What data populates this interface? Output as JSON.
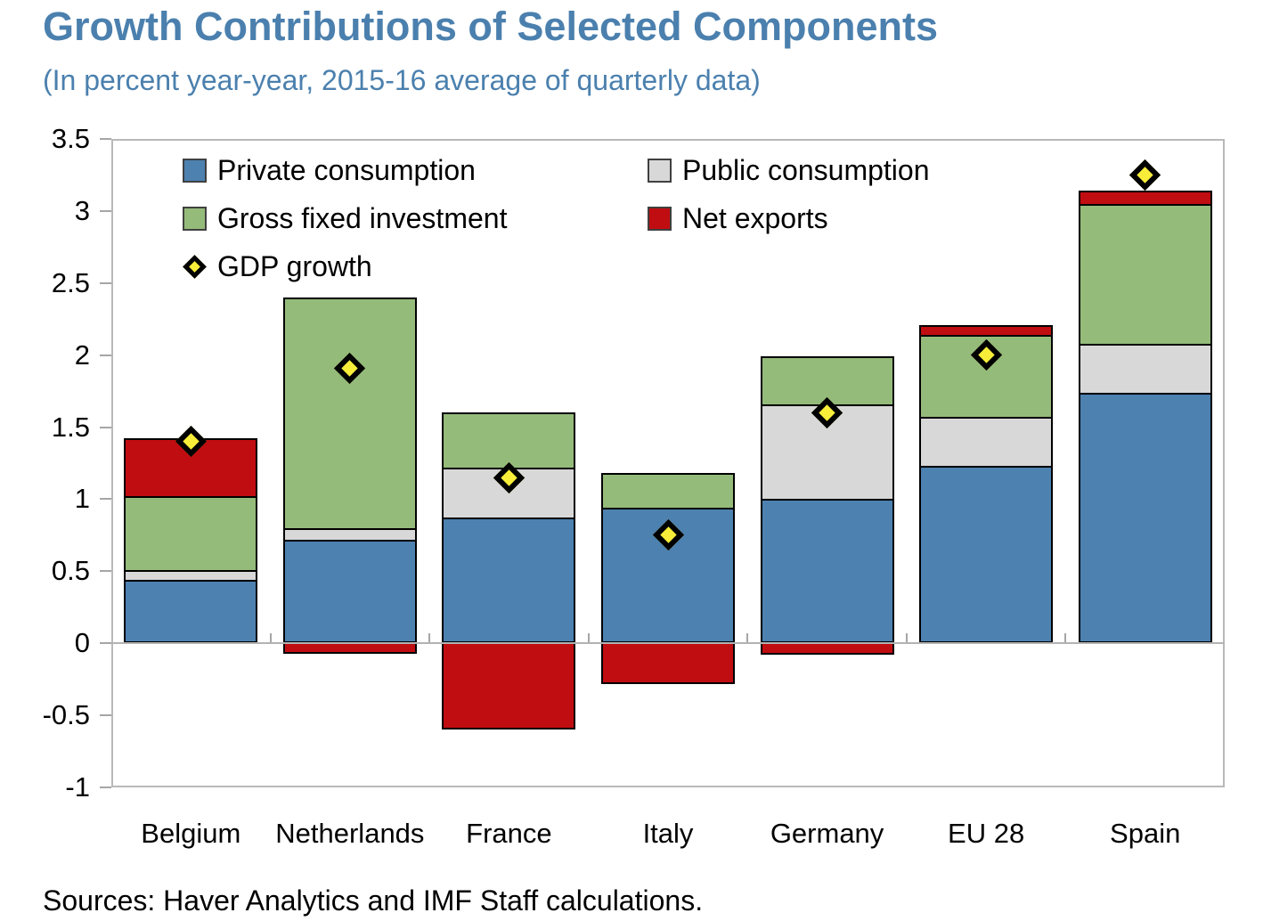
{
  "header": {
    "title": "Growth Contributions of Selected Components",
    "subtitle": "(In percent year-year, 2015-16 average of quarterly data)"
  },
  "colors": {
    "title_blue": "#4B80AE",
    "private_consumption": "#4C81B0",
    "public_consumption": "#D8D8D8",
    "gross_fixed_investment": "#95BB7B",
    "net_exports": "#C00D11",
    "gdp_marker_fill": "#F8EE3A",
    "gdp_marker_border": "#000000",
    "axis_gray": "#B9B9B9"
  },
  "legend": {
    "items": [
      {
        "label": "Private consumption",
        "marker": "square",
        "color_key": "private_consumption"
      },
      {
        "label": "Public consumption",
        "marker": "square",
        "color_key": "public_consumption"
      },
      {
        "label": "Gross fixed investment",
        "marker": "square",
        "color_key": "gross_fixed_investment"
      },
      {
        "label": "Net exports",
        "marker": "square",
        "color_key": "net_exports"
      },
      {
        "label": "GDP growth",
        "marker": "diamond",
        "color_key": "gdp_marker_fill"
      }
    ]
  },
  "chart_data": {
    "type": "bar",
    "stacked": true,
    "title": "Growth Contributions of Selected Components",
    "subtitle": "(In percent year-year, 2015-16 average of quarterly data)",
    "categories": [
      "Belgium",
      "Netherlands",
      "France",
      "Italy",
      "Germany",
      "EU 28",
      "Spain"
    ],
    "series": [
      {
        "name": "Private consumption",
        "color_key": "private_consumption",
        "values": [
          0.44,
          0.72,
          0.87,
          0.94,
          1.0,
          1.23,
          1.74
        ]
      },
      {
        "name": "Public consumption",
        "color_key": "public_consumption",
        "values": [
          0.07,
          0.08,
          0.35,
          0.0,
          0.66,
          0.34,
          0.34
        ]
      },
      {
        "name": "Gross fixed investment",
        "color_key": "gross_fixed_investment",
        "values": [
          0.51,
          1.6,
          0.38,
          0.24,
          0.33,
          0.57,
          0.97
        ]
      },
      {
        "name": "Net exports",
        "color_key": "net_exports",
        "values": [
          0.4,
          -0.07,
          -0.6,
          -0.28,
          -0.08,
          0.07,
          0.09
        ]
      }
    ],
    "markers": {
      "name": "GDP growth",
      "values": [
        1.4,
        1.91,
        1.15,
        0.75,
        1.6,
        2.0,
        3.25
      ]
    },
    "ylim": [
      -1,
      3.5
    ],
    "yticks": [
      "3.5",
      "3",
      "2.5",
      "2",
      "1.5",
      "1",
      "0.5",
      "0",
      "-0.5",
      "-1"
    ],
    "ytick_values": [
      3.5,
      3,
      2.5,
      2,
      1.5,
      1,
      0.5,
      0,
      -0.5,
      -1
    ],
    "grid": false,
    "legend_position": "inside-top-left",
    "xlabel": "",
    "ylabel": ""
  },
  "footer": {
    "source": "Sources: Haver Analytics and IMF Staff calculations."
  }
}
